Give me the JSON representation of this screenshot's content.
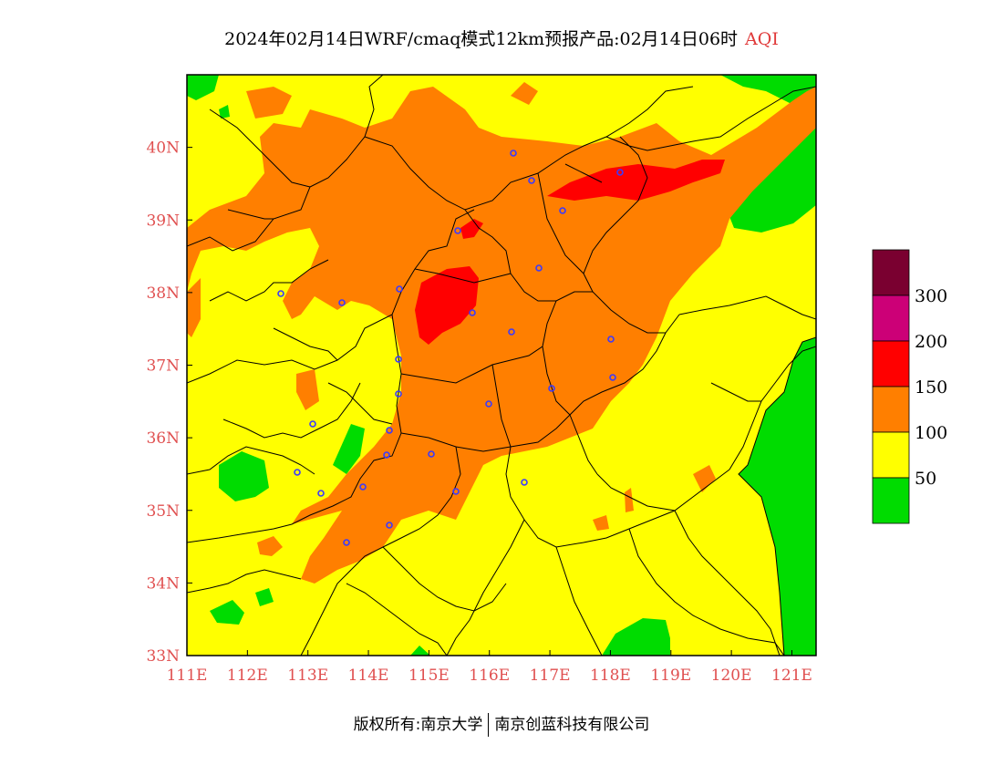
{
  "title": {
    "main": "2024年02月14日WRF/cmaq模式12km预报产品:02月14日06时",
    "variable": "AQI"
  },
  "map": {
    "lon_range": [
      111,
      121.4
    ],
    "lat_range": [
      33,
      41
    ],
    "x_ticks": [
      "111E",
      "112E",
      "113E",
      "114E",
      "115E",
      "116E",
      "117E",
      "118E",
      "119E",
      "120E",
      "121E"
    ],
    "y_ticks": [
      "33N",
      "34N",
      "35N",
      "36N",
      "37N",
      "38N",
      "39N",
      "40N"
    ],
    "class_colors": {
      "good": "#00dc00",
      "moderate": "#ffff00",
      "light": "#ff7f00",
      "medium": "#ff0000",
      "heavy": "#cc0077",
      "severe": "#7a0030"
    },
    "city_marker_color": "#3a3aff"
  },
  "legend": {
    "labels": [
      "300",
      "200",
      "150",
      "100",
      "50"
    ],
    "colors": [
      "#7a0030",
      "#cc0077",
      "#ff0000",
      "#ff7f00",
      "#ffff00",
      "#00dc00"
    ]
  },
  "footer": {
    "left": "版权所有:南京大学",
    "right": "南京创蓝科技有限公司"
  }
}
